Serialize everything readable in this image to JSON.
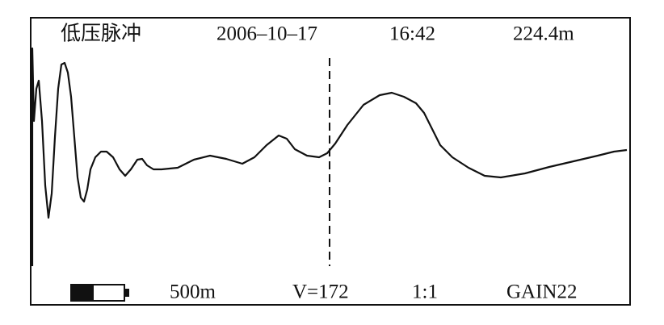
{
  "header": {
    "mode": "低压脉冲",
    "date": "2006–10–17",
    "time": "16:42",
    "distance": "224.4m"
  },
  "footer": {
    "range": "500m",
    "velocity": "V=172",
    "scale": "1:1",
    "gain": "GAIN22"
  }
}
